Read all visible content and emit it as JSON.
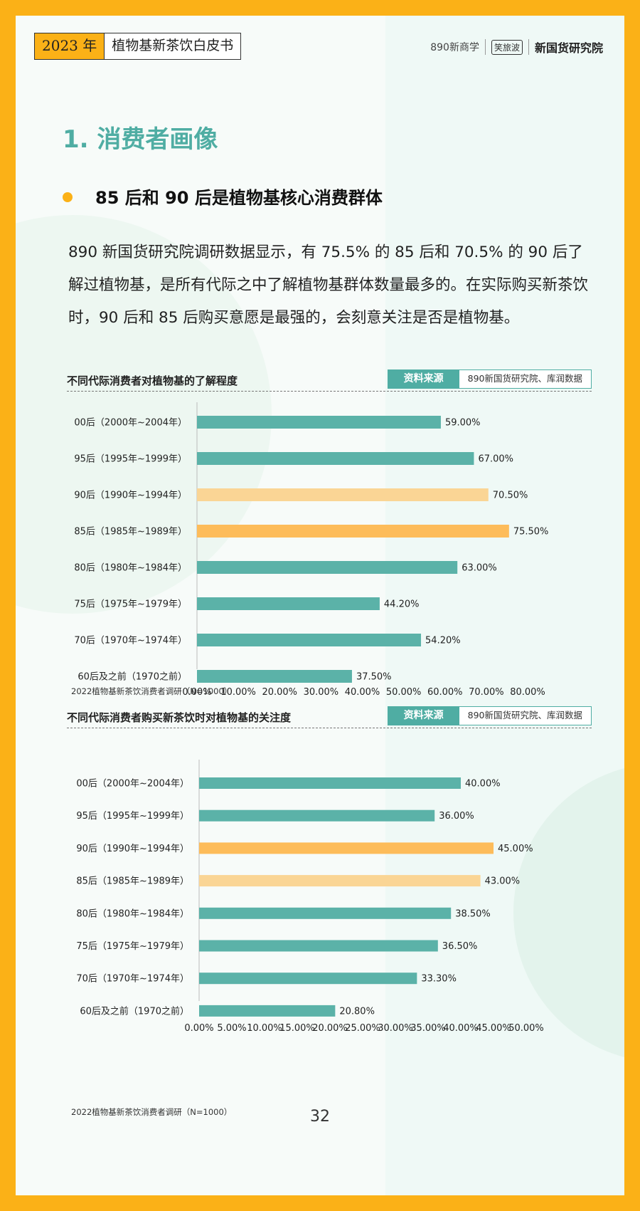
{
  "header": {
    "year": "2023 年",
    "title": "植物基新茶饮白皮书",
    "logo_890": "890新商学",
    "logo_partner": "笑旅波",
    "logo_main": "新国货研究院"
  },
  "section_title": "1. 消费者画像",
  "subtitle": "85 后和 90 后是植物基核心消费群体",
  "paragraph": "890 新国货研究院调研数据显示，有 75.5% 的 85 后和 70.5% 的 90 后了解过植物基，是所有代际之中了解植物基群体数量最多的。在实际购买新茶饮时，90 后和 85 后购买意愿是最强的，会刻意关注是否是植物基。",
  "colors": {
    "teal": "#5BB2A8",
    "orange": "#FDBC5A",
    "light_orange": "#FAD595",
    "accent": "#4FADA3",
    "frame": "#FBB117"
  },
  "chart_data": [
    {
      "type": "bar",
      "orientation": "horizontal",
      "title": "不同代际消费者对植物基的了解程度",
      "source_label": "资料来源",
      "source": "890新国货研究院、库润数据",
      "note": "2022植物基新茶饮消费者调研（N=1000）",
      "categories": [
        "00后（2000年~2004年）",
        "95后（1995年~1999年）",
        "90后（1990年~1994年）",
        "85后（1985年~1989年）",
        "80后（1980年~1984年）",
        "75后（1975年~1979年）",
        "70后（1970年~1974年）",
        "60后及之前（1970之前）"
      ],
      "values": [
        59.0,
        67.0,
        70.5,
        75.5,
        63.0,
        44.2,
        54.2,
        37.5
      ],
      "value_labels": [
        "59.00%",
        "67.00%",
        "70.50%",
        "75.50%",
        "63.00%",
        "44.20%",
        "54.20%",
        "37.50%"
      ],
      "bar_colors": [
        "#5BB2A8",
        "#5BB2A8",
        "#FAD595",
        "#FDBC5A",
        "#5BB2A8",
        "#5BB2A8",
        "#5BB2A8",
        "#5BB2A8"
      ],
      "xlim": [
        0,
        80
      ],
      "xticks": [
        "0.00%",
        "10.00%",
        "20.00%",
        "30.00%",
        "40.00%",
        "50.00%",
        "60.00%",
        "70.00%",
        "80.00%"
      ]
    },
    {
      "type": "bar",
      "orientation": "horizontal",
      "title": "不同代际消费者购买新茶饮时对植物基的关注度",
      "source_label": "资料来源",
      "source": "890新国货研究院、库润数据",
      "note": "2022植物基新茶饮消费者调研（N=1000）",
      "categories": [
        "00后（2000年~2004年）",
        "95后（1995年~1999年）",
        "90后（1990年~1994年）",
        "85后（1985年~1989年）",
        "80后（1980年~1984年）",
        "75后（1975年~1979年）",
        "70后（1970年~1974年）",
        "60后及之前（1970之前）"
      ],
      "values": [
        40.0,
        36.0,
        45.0,
        43.0,
        38.5,
        36.5,
        33.3,
        20.8
      ],
      "value_labels": [
        "40.00%",
        "36.00%",
        "45.00%",
        "43.00%",
        "38.50%",
        "36.50%",
        "33.30%",
        "20.80%"
      ],
      "bar_colors": [
        "#5BB2A8",
        "#5BB2A8",
        "#FDBC5A",
        "#FAD595",
        "#5BB2A8",
        "#5BB2A8",
        "#5BB2A8",
        "#5BB2A8"
      ],
      "xlim": [
        0,
        50
      ],
      "xticks": [
        "0.00%",
        "5.00%",
        "10.00%",
        "15.00%",
        "20.00%",
        "25.00%",
        "30.00%",
        "35.00%",
        "40.00%",
        "45.00%",
        "50.00%"
      ]
    }
  ],
  "page_number": "32"
}
